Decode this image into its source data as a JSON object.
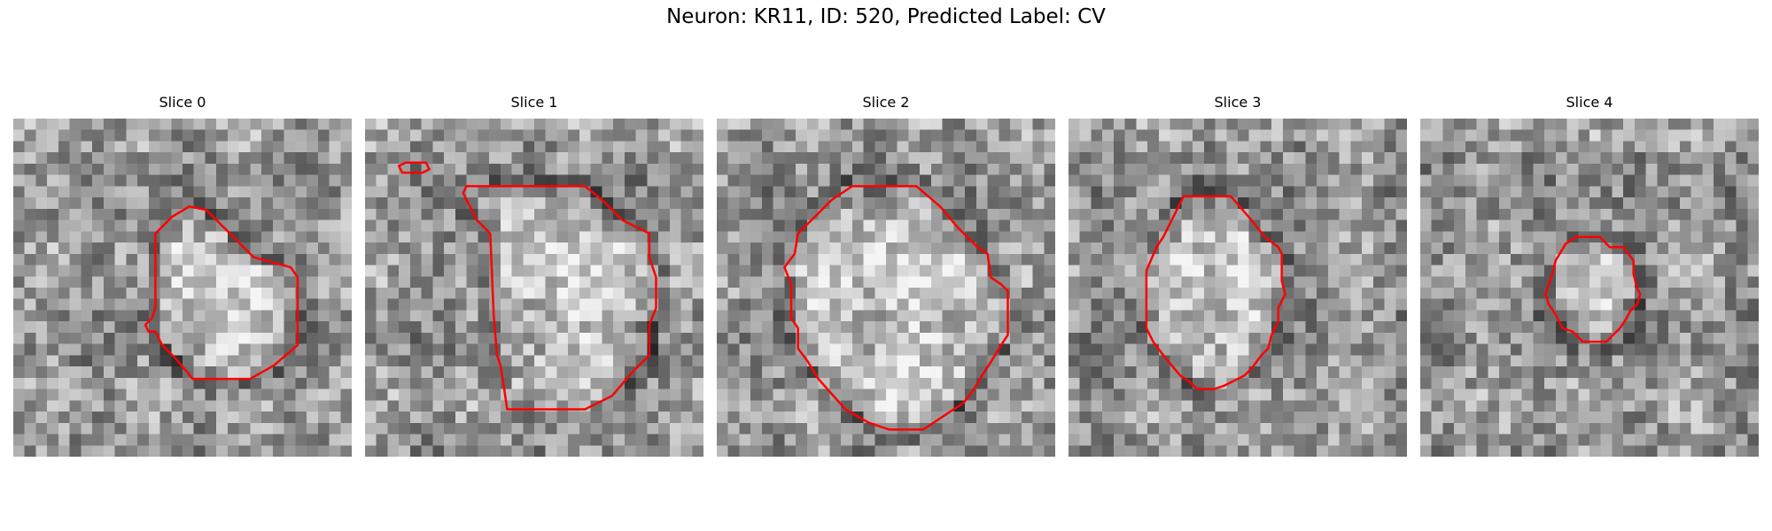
{
  "figure": {
    "title": "Neuron: KR11, ID: 520, Predicted Label: CV",
    "contour_color": "#ff0000",
    "colormap": "gray"
  },
  "panels": [
    {
      "title": "Slice 0",
      "contours": [
        [
          [
            0.47,
            0.29
          ],
          [
            0.52,
            0.26
          ],
          [
            0.57,
            0.27
          ],
          [
            0.63,
            0.33
          ],
          [
            0.68,
            0.38
          ],
          [
            0.71,
            0.41
          ],
          [
            0.82,
            0.44
          ],
          [
            0.84,
            0.47
          ],
          [
            0.84,
            0.67
          ],
          [
            0.77,
            0.73
          ],
          [
            0.7,
            0.77
          ],
          [
            0.53,
            0.77
          ],
          [
            0.48,
            0.71
          ],
          [
            0.44,
            0.67
          ],
          [
            0.42,
            0.63
          ],
          [
            0.4,
            0.63
          ],
          [
            0.39,
            0.61
          ],
          [
            0.41,
            0.59
          ],
          [
            0.42,
            0.56
          ],
          [
            0.42,
            0.34
          ]
        ]
      ]
    },
    {
      "title": "Slice 1",
      "contours": [
        [
          [
            0.3,
            0.2
          ],
          [
            0.65,
            0.2
          ],
          [
            0.7,
            0.24
          ],
          [
            0.76,
            0.3
          ],
          [
            0.84,
            0.34
          ],
          [
            0.84,
            0.41
          ],
          [
            0.86,
            0.47
          ],
          [
            0.86,
            0.56
          ],
          [
            0.84,
            0.61
          ],
          [
            0.84,
            0.7
          ],
          [
            0.79,
            0.75
          ],
          [
            0.73,
            0.82
          ],
          [
            0.65,
            0.86
          ],
          [
            0.42,
            0.86
          ],
          [
            0.41,
            0.79
          ],
          [
            0.4,
            0.73
          ],
          [
            0.39,
            0.7
          ],
          [
            0.38,
            0.58
          ],
          [
            0.37,
            0.34
          ],
          [
            0.33,
            0.3
          ],
          [
            0.31,
            0.26
          ],
          [
            0.3,
            0.24
          ],
          [
            0.29,
            0.22
          ]
        ],
        [
          [
            0.1,
            0.14
          ],
          [
            0.12,
            0.13
          ],
          [
            0.18,
            0.13
          ],
          [
            0.19,
            0.15
          ],
          [
            0.17,
            0.16
          ],
          [
            0.11,
            0.16
          ]
        ]
      ]
    },
    {
      "title": "Slice 2",
      "contours": [
        [
          [
            0.34,
            0.24
          ],
          [
            0.4,
            0.2
          ],
          [
            0.59,
            0.2
          ],
          [
            0.66,
            0.26
          ],
          [
            0.71,
            0.32
          ],
          [
            0.77,
            0.38
          ],
          [
            0.8,
            0.4
          ],
          [
            0.81,
            0.47
          ],
          [
            0.84,
            0.49
          ],
          [
            0.86,
            0.51
          ],
          [
            0.86,
            0.64
          ],
          [
            0.84,
            0.67
          ],
          [
            0.81,
            0.72
          ],
          [
            0.79,
            0.75
          ],
          [
            0.76,
            0.8
          ],
          [
            0.73,
            0.84
          ],
          [
            0.7,
            0.86
          ],
          [
            0.67,
            0.88
          ],
          [
            0.61,
            0.92
          ],
          [
            0.51,
            0.92
          ],
          [
            0.45,
            0.9
          ],
          [
            0.38,
            0.86
          ],
          [
            0.3,
            0.77
          ],
          [
            0.27,
            0.72
          ],
          [
            0.24,
            0.68
          ],
          [
            0.24,
            0.62
          ],
          [
            0.22,
            0.59
          ],
          [
            0.22,
            0.49
          ],
          [
            0.2,
            0.44
          ],
          [
            0.23,
            0.4
          ],
          [
            0.24,
            0.34
          ],
          [
            0.28,
            0.3
          ]
        ]
      ]
    },
    {
      "title": "Slice 3",
      "contours": [
        [
          [
            0.34,
            0.23
          ],
          [
            0.48,
            0.23
          ],
          [
            0.54,
            0.3
          ],
          [
            0.58,
            0.35
          ],
          [
            0.62,
            0.38
          ],
          [
            0.63,
            0.4
          ],
          [
            0.63,
            0.48
          ],
          [
            0.64,
            0.52
          ],
          [
            0.62,
            0.56
          ],
          [
            0.62,
            0.6
          ],
          [
            0.6,
            0.64
          ],
          [
            0.59,
            0.68
          ],
          [
            0.57,
            0.7
          ],
          [
            0.54,
            0.74
          ],
          [
            0.52,
            0.76
          ],
          [
            0.48,
            0.78
          ],
          [
            0.46,
            0.79
          ],
          [
            0.43,
            0.8
          ],
          [
            0.38,
            0.8
          ],
          [
            0.36,
            0.78
          ],
          [
            0.33,
            0.76
          ],
          [
            0.28,
            0.7
          ],
          [
            0.25,
            0.66
          ],
          [
            0.23,
            0.62
          ],
          [
            0.23,
            0.45
          ],
          [
            0.26,
            0.38
          ],
          [
            0.28,
            0.35
          ],
          [
            0.3,
            0.31
          ]
        ]
      ]
    },
    {
      "title": "Slice 4",
      "contours": [
        [
          [
            0.43,
            0.37
          ],
          [
            0.46,
            0.35
          ],
          [
            0.53,
            0.35
          ],
          [
            0.56,
            0.38
          ],
          [
            0.6,
            0.38
          ],
          [
            0.63,
            0.42
          ],
          [
            0.63,
            0.46
          ],
          [
            0.64,
            0.5
          ],
          [
            0.65,
            0.52
          ],
          [
            0.64,
            0.55
          ],
          [
            0.62,
            0.57
          ],
          [
            0.61,
            0.59
          ],
          [
            0.59,
            0.62
          ],
          [
            0.57,
            0.64
          ],
          [
            0.55,
            0.66
          ],
          [
            0.48,
            0.66
          ],
          [
            0.45,
            0.63
          ],
          [
            0.42,
            0.62
          ],
          [
            0.4,
            0.58
          ],
          [
            0.38,
            0.55
          ],
          [
            0.37,
            0.52
          ],
          [
            0.38,
            0.49
          ],
          [
            0.39,
            0.46
          ],
          [
            0.4,
            0.42
          ]
        ]
      ]
    }
  ]
}
